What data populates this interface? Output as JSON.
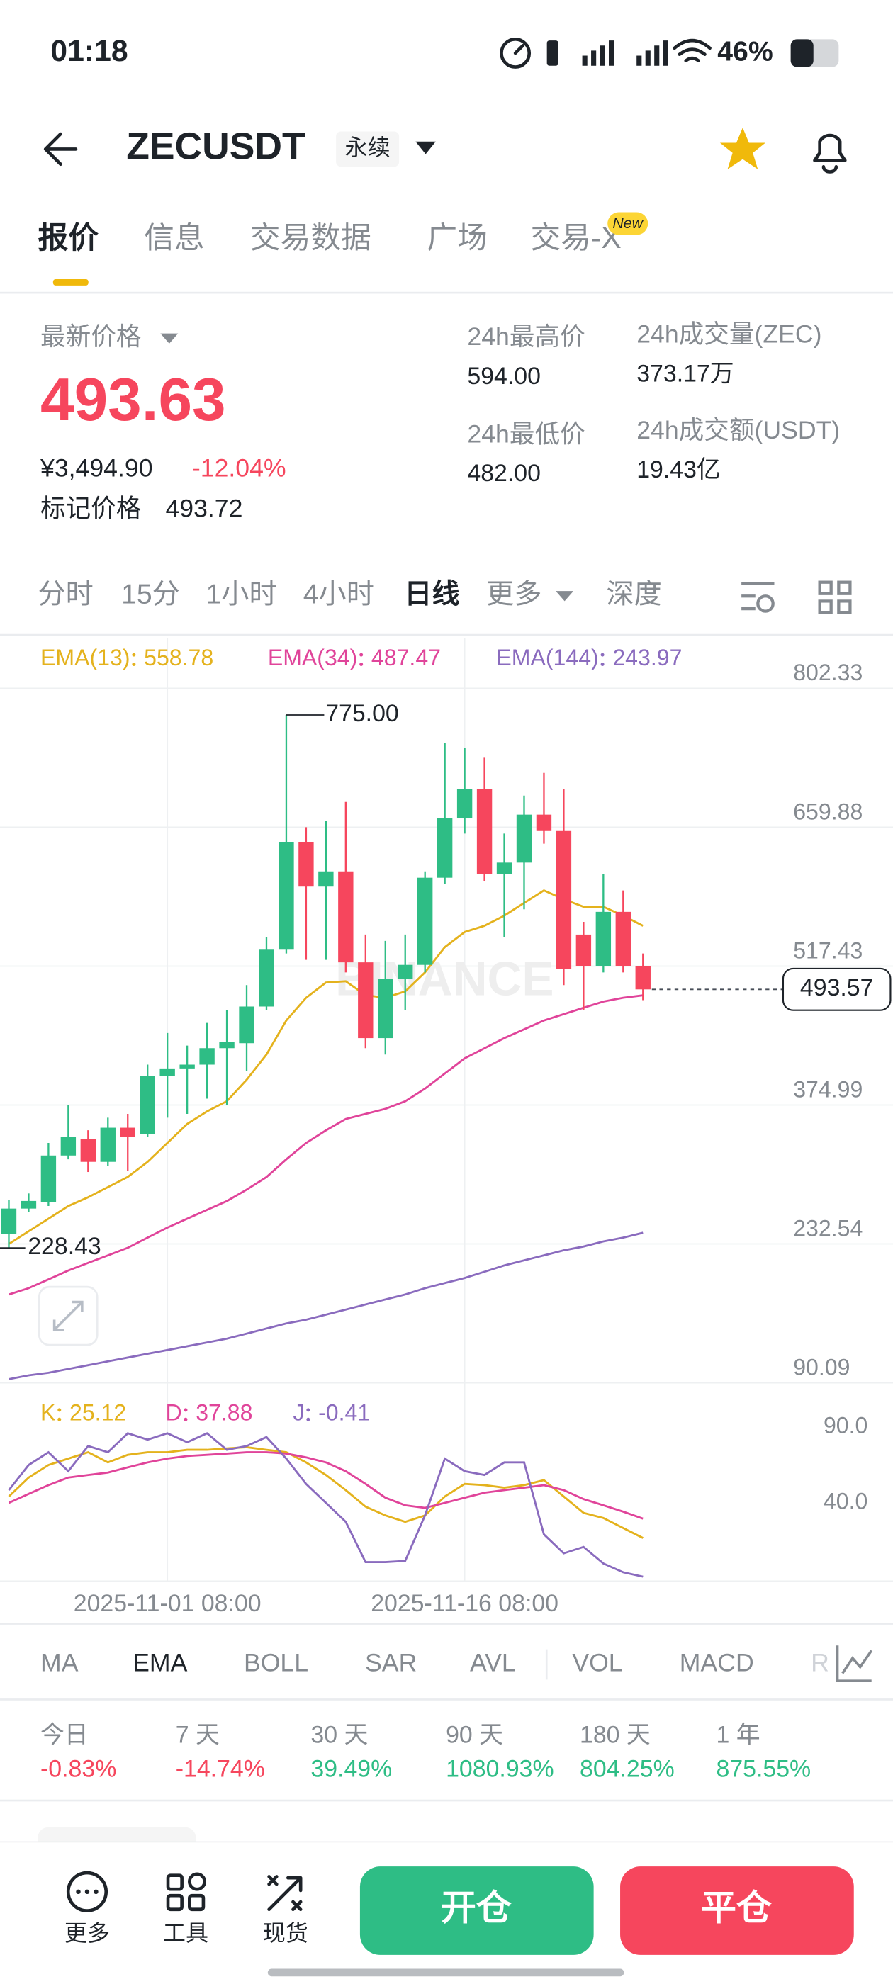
{
  "status_bar": {
    "time": "01:18",
    "battery": "46%"
  },
  "header": {
    "symbol": "ZECUSDT",
    "contract": "永续"
  },
  "tabs": [
    "报价",
    "信息",
    "交易数据",
    "广场",
    "交易-X"
  ],
  "tab_badge": "New",
  "price": {
    "label": "最新价格",
    "last": "493.63",
    "cny": "¥3,494.90",
    "change": "-12.04%",
    "mark_label": "标记价格",
    "mark": "493.72"
  },
  "stats": [
    {
      "label": "24h最高价",
      "value": "594.00"
    },
    {
      "label": "24h成交量(ZEC)",
      "value": "373.17万"
    },
    {
      "label": "24h最低价",
      "value": "482.00"
    },
    {
      "label": "24h成交额(USDT)",
      "value": "19.43亿"
    }
  ],
  "intervals": [
    "分时",
    "15分",
    "1小时",
    "4小时",
    "日线",
    "更多",
    "深度"
  ],
  "chart_data": [
    {
      "type": "candlestick",
      "watermark": "BINANCE",
      "up_color": "#2ebd85",
      "down_color": "#f6465d",
      "categories": [
        null,
        null,
        null,
        null,
        null,
        null,
        null,
        null,
        "2025-11-01 08:00",
        null,
        null,
        null,
        null,
        null,
        null,
        null,
        null,
        null,
        null,
        null,
        null,
        null,
        null,
        "2025-11-16 08:00",
        null,
        null,
        null,
        null,
        null,
        null,
        null,
        null,
        null
      ],
      "open": [
        242.9,
        268.8,
        275.3,
        323.2,
        340.0,
        316.7,
        351.7,
        345.2,
        404.8,
        412.5,
        416.4,
        433.3,
        438.4,
        476.0,
        534.3,
        644.3,
        599.0,
        614.6,
        521.3,
        443.6,
        504.5,
        518.7,
        608.1,
        668.9,
        698.7,
        612.0,
        623.6,
        672.8,
        656.0,
        549.8,
        517.4,
        573.1,
        517.4
      ],
      "high": [
        277.8,
        284.3,
        336.1,
        375.0,
        349.1,
        362.0,
        365.9,
        416.4,
        448.8,
        435.9,
        459.2,
        472.1,
        498.0,
        547.2,
        775,
        659.9,
        666.4,
        685.8,
        549.8,
        543.3,
        549.8,
        614.6,
        746.6,
        741.5,
        731.1,
        653.4,
        692.3,
        715.6,
        698.7,
        562.8,
        612.0,
        595.1,
        530.4
      ],
      "low": [
        228.43,
        264.9,
        271.4,
        319.3,
        306.3,
        312.8,
        307.6,
        342.6,
        362.0,
        365.9,
        381.5,
        375.0,
        409.9,
        472.1,
        530.4,
        523.9,
        523.9,
        511.0,
        433.3,
        426.8,
        472.1,
        511.0,
        601.6,
        653.4,
        604.2,
        547.2,
        575.7,
        643.0,
        498.0,
        472.1,
        511.0,
        511.0,
        482.5
      ],
      "close": [
        268.8,
        276.6,
        323.2,
        342.6,
        316.7,
        351.7,
        342.6,
        404.8,
        412.5,
        416.4,
        433.3,
        439.7,
        476.0,
        534.3,
        644.3,
        599.0,
        614.6,
        521.3,
        443.6,
        504.5,
        518.7,
        608.1,
        668.9,
        698.7,
        612.0,
        623.6,
        672.8,
        656.0,
        514.8,
        517.4,
        573.1,
        517.4,
        493.57
      ],
      "series": [
        {
          "name": "EMA(13)",
          "color": "#e4b21d",
          "values": [
            232.5,
            245.5,
            258.4,
            271.4,
            280.4,
            290.8,
            301.2,
            316.7,
            336.1,
            355.6,
            368.5,
            378.9,
            400.9,
            426.8,
            461.7,
            485.0,
            500.6,
            501.9,
            487.7,
            485.0,
            491.5,
            511.0,
            536.9,
            552.4,
            558.8,
            569.2,
            582.2,
            595.1,
            586.0,
            578.3,
            578.3,
            569.2,
            558.78
          ]
        },
        {
          "name": "EMA(34)",
          "color": "#e0449a",
          "values": [
            180.7,
            187.2,
            196.2,
            205.3,
            213.1,
            220.8,
            228.6,
            239.0,
            249.3,
            258.4,
            267.5,
            276.5,
            288.2,
            301.1,
            319.3,
            336.1,
            349.0,
            360.7,
            365.9,
            371.1,
            378.8,
            391.8,
            407.3,
            422.9,
            433.2,
            443.6,
            452.6,
            461.7,
            468.2,
            474.7,
            481.1,
            485.0,
            487.47
          ]
        },
        {
          "name": "EMA(144)",
          "color": "#8a6bbe",
          "values": [
            93.9,
            97.8,
            100.4,
            104.3,
            108.2,
            112.1,
            116.0,
            119.9,
            123.7,
            127.6,
            131.5,
            135.4,
            140.6,
            145.8,
            151.0,
            154.8,
            160.0,
            165.2,
            170.4,
            175.6,
            180.7,
            187.2,
            192.4,
            197.6,
            204.0,
            210.5,
            215.7,
            220.8,
            226.0,
            229.9,
            235.1,
            239.0,
            243.97
          ]
        }
      ],
      "ylim": [
        90.09,
        802.33
      ],
      "yticks": [
        90.09,
        232.54,
        374.99,
        517.43,
        659.88,
        802.33
      ],
      "grid": true,
      "high_marker": {
        "value": 775,
        "label": "775.00"
      },
      "low_marker": 228.43,
      "last_price": 493.57
    },
    {
      "type": "line",
      "series": [
        {
          "name": "K",
          "color": "#e4b21d",
          "values": [
            52.5,
            65,
            73.3,
            77.5,
            81.7,
            75,
            80,
            81.7,
            81.7,
            83.3,
            83.3,
            84.2,
            85,
            83.3,
            81.7,
            75,
            66.7,
            56.7,
            45.8,
            40,
            35.8,
            40,
            52.5,
            60.8,
            60,
            58.3,
            60,
            63.3,
            52.5,
            41.7,
            38.3,
            31.7,
            25.12
          ]
        },
        {
          "name": "D",
          "color": "#e0449a",
          "values": [
            48.3,
            54.2,
            60,
            65,
            66.7,
            68.3,
            71.7,
            75,
            77.5,
            79.2,
            80,
            80.8,
            81.7,
            81.7,
            80.8,
            78.3,
            75,
            69.2,
            60.8,
            51.7,
            46.7,
            45,
            48.3,
            51.7,
            55,
            56.7,
            58.3,
            60,
            56.7,
            50.8,
            46.7,
            42.5,
            37.88
          ]
        },
        {
          "name": "J",
          "color": "#8a6bbe",
          "values": [
            56.7,
            73.3,
            81.7,
            69.2,
            85.8,
            81.7,
            94.2,
            90,
            94.2,
            88.3,
            94.2,
            83.3,
            85.8,
            91.7,
            77.5,
            60.8,
            48.3,
            35.8,
            9.2,
            9.2,
            10,
            40,
            77.5,
            69.2,
            66.7,
            75,
            75,
            27.5,
            15,
            19.2,
            8.3,
            2.5,
            -0.41
          ]
        }
      ],
      "ylim": [
        -3.33,
        123.33
      ],
      "yticks": [
        {
          "value": 40,
          "label": "40.0"
        },
        {
          "value": 90,
          "label": "90.0"
        }
      ],
      "grid": false
    }
  ],
  "indicator_tabs": [
    "MA",
    "EMA",
    "BOLL",
    "SAR",
    "AVL",
    "VOL",
    "MACD",
    "R"
  ],
  "performance": [
    {
      "label": "今日",
      "value": "-0.83%"
    },
    {
      "label": "7 天",
      "value": "-14.74%"
    },
    {
      "label": "30 天",
      "value": "39.49%"
    },
    {
      "label": "90 天",
      "value": "1080.93%"
    },
    {
      "label": "180 天",
      "value": "804.25%"
    },
    {
      "label": "1 年",
      "value": "875.55%"
    }
  ],
  "bottom_bar": {
    "items": [
      "更多",
      "工具",
      "现货"
    ],
    "open": "开仓",
    "close": "平仓"
  }
}
